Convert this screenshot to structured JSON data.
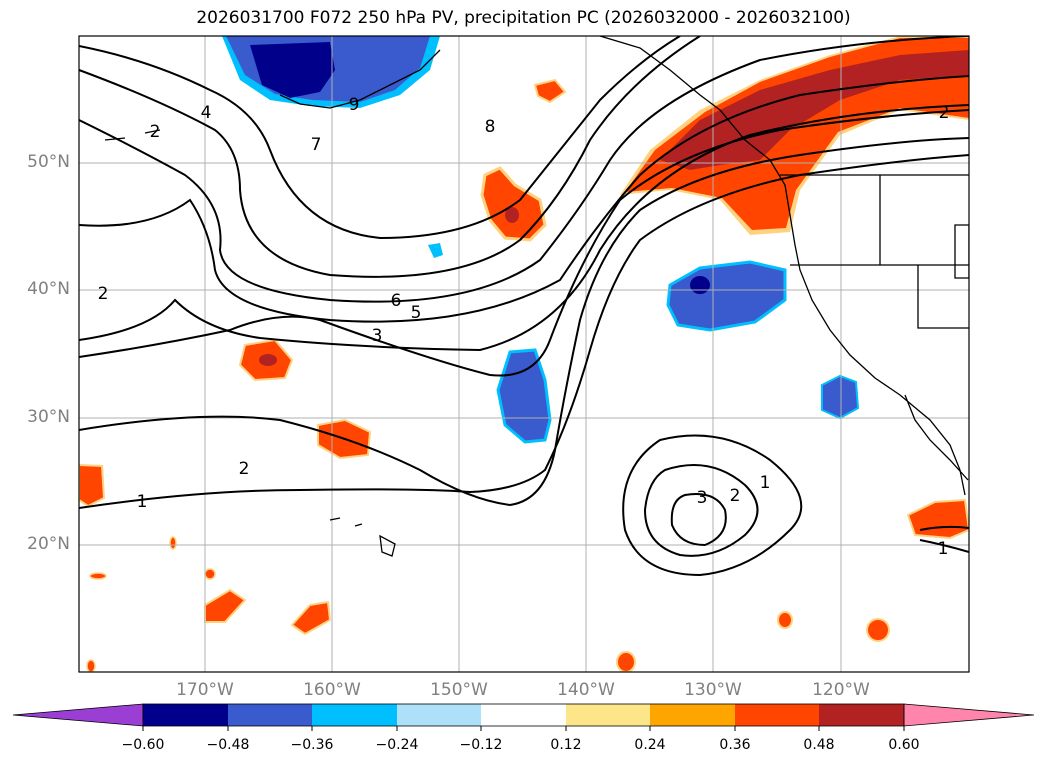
{
  "title": "2026031700 F072 250 hPa PV, precipitation PC (2026032000 - 2026032100)",
  "lat_labels": [
    "50°N",
    "40°N",
    "30°N",
    "20°N"
  ],
  "lon_labels": [
    "170°W",
    "160°W",
    "150°W",
    "140°W",
    "130°W",
    "120°W"
  ],
  "colorbar": {
    "ticks": [
      "−0.60",
      "−0.48",
      "−0.36",
      "−0.24",
      "−0.12",
      "0.12",
      "0.24",
      "0.36",
      "0.48",
      "0.60"
    ],
    "colors": [
      "#9b3fd4",
      "#00008b",
      "#3a5bcd",
      "#00bfff",
      "#aee0fa",
      "#ffffff",
      "#fde68a",
      "#ffa500",
      "#ff4500",
      "#b22222",
      "#ff85ad"
    ]
  },
  "contour_labels": [
    "9",
    "8",
    "7",
    "4",
    "2",
    "2",
    "6",
    "5",
    "3",
    "2",
    "1",
    "2",
    "1",
    "2",
    "3",
    "1"
  ]
}
